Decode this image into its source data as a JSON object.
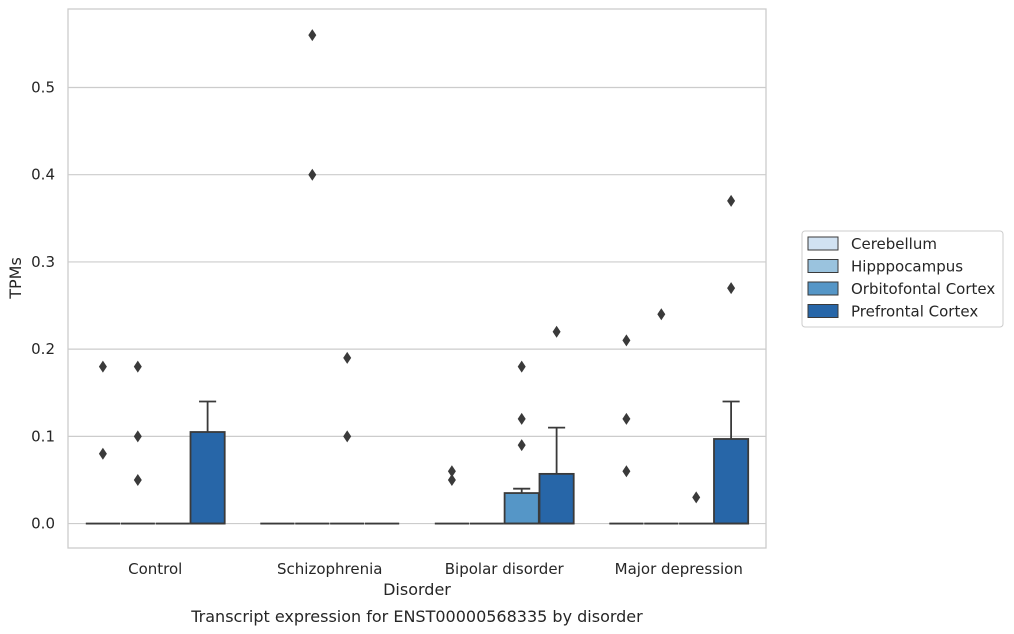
{
  "chart_data": {
    "type": "box",
    "title": "",
    "caption": "Transcript expression for ENST00000568335 by disorder",
    "xlabel": "Disorder",
    "ylabel": "TPMs",
    "ylim": [
      -0.028,
      0.59
    ],
    "yticks": [
      "0.0",
      "0.1",
      "0.2",
      "0.3",
      "0.4",
      "0.5"
    ],
    "grid": true,
    "legend_position": "right",
    "categories": [
      "Control",
      "Schizophrenia",
      "Bipolar disorder",
      "Major depression"
    ],
    "series": [
      {
        "name": "Cerebellum",
        "color": "#d1e2f2",
        "boxes": [
          {
            "q1": 0,
            "median": 0,
            "q3": 0,
            "whisker_low": 0,
            "whisker_high": 0,
            "outliers": [
              0.08,
              0.18
            ]
          },
          {
            "q1": 0,
            "median": 0,
            "q3": 0,
            "whisker_low": 0,
            "whisker_high": 0,
            "outliers": []
          },
          {
            "q1": 0,
            "median": 0,
            "q3": 0,
            "whisker_low": 0,
            "whisker_high": 0,
            "outliers": [
              0.05,
              0.06
            ]
          },
          {
            "q1": 0,
            "median": 0,
            "q3": 0,
            "whisker_low": 0,
            "whisker_high": 0,
            "outliers": [
              0.06,
              0.12,
              0.21
            ]
          }
        ]
      },
      {
        "name": "Hipppocampus",
        "color": "#9ac3de",
        "boxes": [
          {
            "q1": 0,
            "median": 0,
            "q3": 0,
            "whisker_low": 0,
            "whisker_high": 0,
            "outliers": [
              0.05,
              0.1,
              0.18
            ]
          },
          {
            "q1": 0,
            "median": 0,
            "q3": 0,
            "whisker_low": 0,
            "whisker_high": 0,
            "outliers": [
              0.4,
              0.56
            ]
          },
          {
            "q1": 0,
            "median": 0,
            "q3": 0,
            "whisker_low": 0,
            "whisker_high": 0,
            "outliers": []
          },
          {
            "q1": 0,
            "median": 0,
            "q3": 0,
            "whisker_low": 0,
            "whisker_high": 0,
            "outliers": [
              0.24
            ]
          }
        ]
      },
      {
        "name": "Orbitofontal Cortex",
        "color": "#5596c7",
        "boxes": [
          {
            "q1": 0,
            "median": 0,
            "q3": 0,
            "whisker_low": 0,
            "whisker_high": 0,
            "outliers": []
          },
          {
            "q1": 0,
            "median": 0,
            "q3": 0,
            "whisker_low": 0,
            "whisker_high": 0,
            "outliers": [
              0.1,
              0.19
            ]
          },
          {
            "q1": 0,
            "median": 0,
            "q3": 0.035,
            "whisker_low": 0,
            "whisker_high": 0.04,
            "outliers": [
              0.09,
              0.12,
              0.18
            ]
          },
          {
            "q1": 0,
            "median": 0,
            "q3": 0,
            "whisker_low": 0,
            "whisker_high": 0,
            "outliers": [
              0.03
            ]
          }
        ]
      },
      {
        "name": "Prefrontal Cortex",
        "color": "#2766a8",
        "boxes": [
          {
            "q1": 0,
            "median": 0,
            "q3": 0.105,
            "whisker_low": 0,
            "whisker_high": 0.14,
            "outliers": []
          },
          {
            "q1": 0,
            "median": 0,
            "q3": 0,
            "whisker_low": 0,
            "whisker_high": 0,
            "outliers": []
          },
          {
            "q1": 0,
            "median": 0,
            "q3": 0.057,
            "whisker_low": 0,
            "whisker_high": 0.11,
            "outliers": [
              0.22
            ]
          },
          {
            "q1": 0,
            "median": 0,
            "q3": 0.097,
            "whisker_low": 0,
            "whisker_high": 0.14,
            "outliers": [
              0.27,
              0.37
            ]
          }
        ]
      }
    ]
  }
}
